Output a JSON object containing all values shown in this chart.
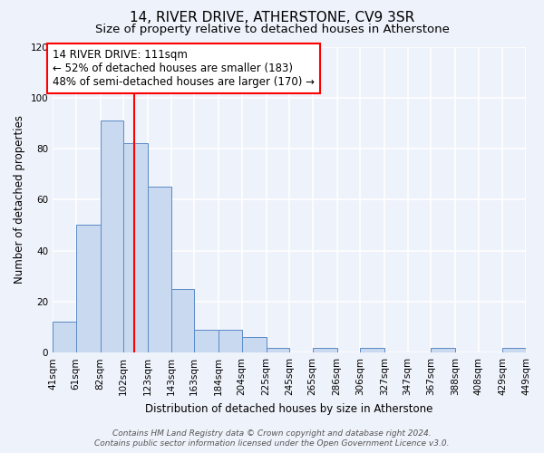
{
  "title": "14, RIVER DRIVE, ATHERSTONE, CV9 3SR",
  "subtitle": "Size of property relative to detached houses in Atherstone",
  "bar_heights": [
    12,
    50,
    91,
    82,
    65,
    25,
    9,
    9,
    6,
    2,
    0,
    2,
    0,
    2,
    0,
    0,
    2,
    0,
    0,
    2
  ],
  "bin_edges": [
    41,
    61,
    82,
    102,
    123,
    143,
    163,
    184,
    204,
    225,
    245,
    265,
    286,
    306,
    327,
    347,
    367,
    388,
    408,
    429,
    449
  ],
  "tick_labels": [
    "41sqm",
    "61sqm",
    "82sqm",
    "102sqm",
    "123sqm",
    "143sqm",
    "163sqm",
    "184sqm",
    "204sqm",
    "225sqm",
    "245sqm",
    "265sqm",
    "286sqm",
    "306sqm",
    "327sqm",
    "347sqm",
    "367sqm",
    "388sqm",
    "408sqm",
    "429sqm",
    "449sqm"
  ],
  "bar_color": "#c9d9f0",
  "bar_edgecolor": "#5a8ac6",
  "red_line_x": 111,
  "annotation_line1": "14 RIVER DRIVE: 111sqm",
  "annotation_line2": "← 52% of detached houses are smaller (183)",
  "annotation_line3": "48% of semi-detached houses are larger (170) →",
  "ylabel": "Number of detached properties",
  "xlabel": "Distribution of detached houses by size in Atherstone",
  "ylim": [
    0,
    120
  ],
  "yticks": [
    0,
    20,
    40,
    60,
    80,
    100,
    120
  ],
  "background_color": "#eef2fa",
  "grid_color": "#ffffff",
  "footer_line1": "Contains HM Land Registry data © Crown copyright and database right 2024.",
  "footer_line2": "Contains public sector information licensed under the Open Government Licence v3.0.",
  "title_fontsize": 11,
  "subtitle_fontsize": 9.5,
  "axis_label_fontsize": 8.5,
  "tick_fontsize": 7.5,
  "annotation_fontsize": 8.5,
  "footer_fontsize": 6.5
}
